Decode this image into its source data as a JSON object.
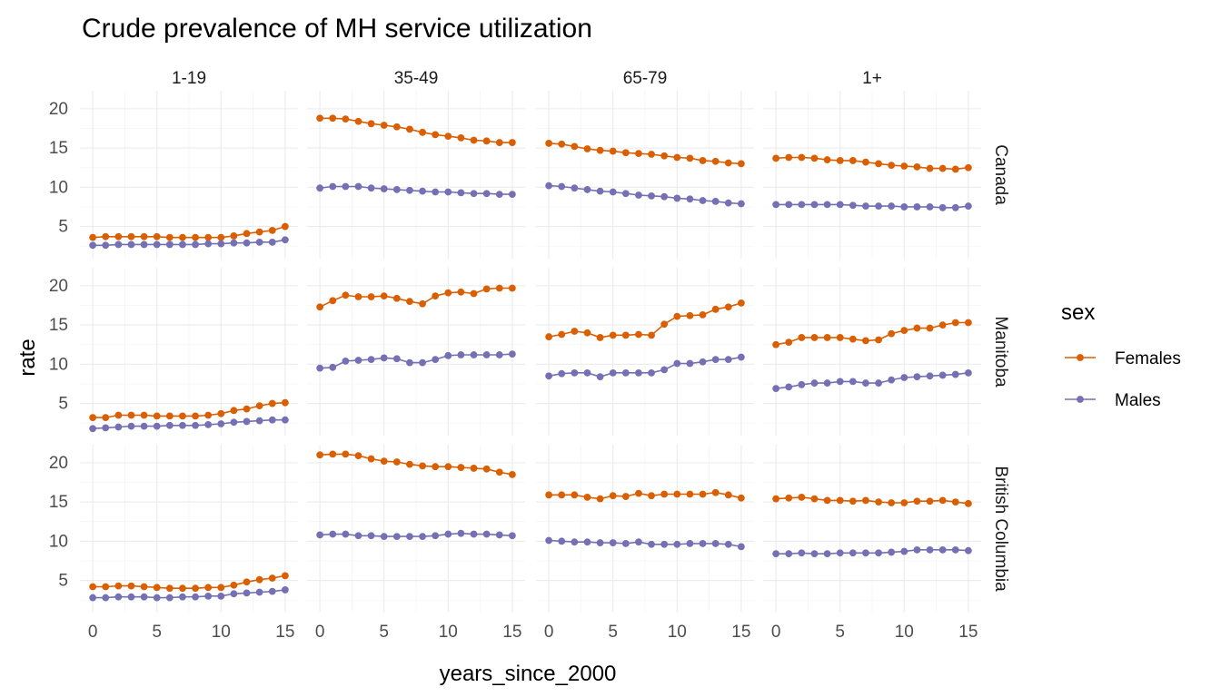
{
  "chart_data": {
    "type": "line",
    "title": "Crude prevalence of MH service utilization",
    "xlabel": "years_since_2000",
    "ylabel": "rate",
    "x": [
      0,
      1,
      2,
      3,
      4,
      5,
      6,
      7,
      8,
      9,
      10,
      11,
      12,
      13,
      14,
      15
    ],
    "xticks": [
      0,
      5,
      10,
      15
    ],
    "yticks": [
      5,
      10,
      15,
      20
    ],
    "xlim": [
      -1,
      16
    ],
    "ylim": [
      0.9,
      22.3
    ],
    "col_facets": [
      "1-19",
      "35-49",
      "65-79",
      "1+"
    ],
    "row_facets": [
      "Canada",
      "Manitoba",
      "British Columbia"
    ],
    "legend": {
      "title": "sex",
      "position": "right",
      "entries": [
        {
          "name": "Females",
          "color": "#D95F02"
        },
        {
          "name": "Males",
          "color": "#7570B3"
        }
      ]
    },
    "panels": [
      {
        "row": "Canada",
        "col": "1-19",
        "series": [
          {
            "name": "Females",
            "values": [
              3.6,
              3.7,
              3.7,
              3.7,
              3.7,
              3.7,
              3.6,
              3.6,
              3.6,
              3.6,
              3.6,
              3.8,
              4.1,
              4.3,
              4.5,
              5.0
            ]
          },
          {
            "name": "Males",
            "values": [
              2.6,
              2.6,
              2.7,
              2.7,
              2.7,
              2.7,
              2.7,
              2.7,
              2.7,
              2.8,
              2.8,
              2.9,
              2.9,
              3.0,
              3.0,
              3.3
            ]
          }
        ]
      },
      {
        "row": "Canada",
        "col": "35-49",
        "series": [
          {
            "name": "Females",
            "values": [
              18.8,
              18.8,
              18.7,
              18.4,
              18.1,
              17.9,
              17.7,
              17.4,
              17.0,
              16.7,
              16.5,
              16.3,
              16.0,
              15.9,
              15.7,
              15.7
            ]
          },
          {
            "name": "Males",
            "values": [
              9.9,
              10.1,
              10.1,
              10.1,
              9.9,
              9.8,
              9.7,
              9.6,
              9.5,
              9.4,
              9.4,
              9.3,
              9.2,
              9.2,
              9.1,
              9.1
            ]
          }
        ]
      },
      {
        "row": "Canada",
        "col": "65-79",
        "series": [
          {
            "name": "Females",
            "values": [
              15.6,
              15.5,
              15.2,
              14.9,
              14.7,
              14.6,
              14.4,
              14.3,
              14.2,
              14.0,
              13.8,
              13.7,
              13.4,
              13.3,
              13.1,
              13.0
            ]
          },
          {
            "name": "Males",
            "values": [
              10.2,
              10.1,
              9.9,
              9.7,
              9.5,
              9.4,
              9.2,
              9.0,
              8.9,
              8.8,
              8.6,
              8.5,
              8.3,
              8.2,
              8.0,
              7.9
            ]
          }
        ]
      },
      {
        "row": "Canada",
        "col": "1+",
        "series": [
          {
            "name": "Females",
            "values": [
              13.7,
              13.8,
              13.8,
              13.7,
              13.5,
              13.4,
              13.4,
              13.2,
              13.0,
              12.8,
              12.7,
              12.6,
              12.4,
              12.4,
              12.3,
              12.5
            ]
          },
          {
            "name": "Males",
            "values": [
              7.8,
              7.8,
              7.8,
              7.8,
              7.8,
              7.8,
              7.7,
              7.6,
              7.6,
              7.6,
              7.5,
              7.5,
              7.5,
              7.4,
              7.4,
              7.6
            ]
          }
        ]
      },
      {
        "row": "Manitoba",
        "col": "1-19",
        "series": [
          {
            "name": "Females",
            "values": [
              3.2,
              3.2,
              3.5,
              3.5,
              3.5,
              3.4,
              3.4,
              3.4,
              3.4,
              3.5,
              3.7,
              4.1,
              4.3,
              4.7,
              5.0,
              5.1
            ]
          },
          {
            "name": "Males",
            "values": [
              1.8,
              1.9,
              2.0,
              2.1,
              2.1,
              2.1,
              2.2,
              2.2,
              2.2,
              2.3,
              2.4,
              2.6,
              2.7,
              2.8,
              2.9,
              2.9
            ]
          }
        ]
      },
      {
        "row": "Manitoba",
        "col": "35-49",
        "series": [
          {
            "name": "Females",
            "values": [
              17.3,
              18.1,
              18.8,
              18.6,
              18.6,
              18.7,
              18.4,
              18.0,
              17.7,
              18.7,
              19.1,
              19.2,
              19.0,
              19.6,
              19.7,
              19.7
            ]
          },
          {
            "name": "Males",
            "values": [
              9.5,
              9.6,
              10.4,
              10.5,
              10.6,
              10.8,
              10.7,
              10.2,
              10.2,
              10.6,
              11.1,
              11.2,
              11.2,
              11.2,
              11.2,
              11.3
            ]
          }
        ]
      },
      {
        "row": "Manitoba",
        "col": "65-79",
        "series": [
          {
            "name": "Females",
            "values": [
              13.5,
              13.8,
              14.2,
              14.0,
              13.4,
              13.7,
              13.7,
              13.8,
              13.7,
              15.1,
              16.1,
              16.2,
              16.3,
              17.0,
              17.3,
              17.8
            ]
          },
          {
            "name": "Males",
            "values": [
              8.5,
              8.8,
              8.9,
              8.9,
              8.4,
              8.9,
              8.9,
              8.9,
              8.9,
              9.3,
              10.1,
              10.1,
              10.3,
              10.6,
              10.6,
              10.9
            ]
          }
        ]
      },
      {
        "row": "Manitoba",
        "col": "1+",
        "series": [
          {
            "name": "Females",
            "values": [
              12.5,
              12.8,
              13.4,
              13.4,
              13.4,
              13.4,
              13.2,
              13.0,
              13.1,
              13.9,
              14.3,
              14.6,
              14.6,
              15.0,
              15.3,
              15.3
            ]
          },
          {
            "name": "Males",
            "values": [
              6.9,
              7.1,
              7.4,
              7.6,
              7.6,
              7.8,
              7.8,
              7.6,
              7.6,
              8.0,
              8.3,
              8.4,
              8.5,
              8.6,
              8.7,
              8.9
            ]
          }
        ]
      },
      {
        "row": "British Columbia",
        "col": "1-19",
        "series": [
          {
            "name": "Females",
            "values": [
              4.2,
              4.2,
              4.3,
              4.3,
              4.2,
              4.1,
              4.0,
              4.0,
              4.0,
              4.1,
              4.1,
              4.4,
              4.8,
              5.1,
              5.3,
              5.6
            ]
          },
          {
            "name": "Males",
            "values": [
              2.8,
              2.8,
              2.9,
              2.9,
              2.9,
              2.8,
              2.8,
              2.9,
              2.9,
              3.0,
              3.0,
              3.3,
              3.4,
              3.5,
              3.6,
              3.8
            ]
          }
        ]
      },
      {
        "row": "British Columbia",
        "col": "35-49",
        "series": [
          {
            "name": "Females",
            "values": [
              21.0,
              21.1,
              21.1,
              20.9,
              20.5,
              20.2,
              20.1,
              19.8,
              19.6,
              19.5,
              19.5,
              19.4,
              19.3,
              19.2,
              18.8,
              18.5
            ]
          },
          {
            "name": "Males",
            "values": [
              10.8,
              10.9,
              10.9,
              10.7,
              10.7,
              10.6,
              10.6,
              10.6,
              10.6,
              10.7,
              10.9,
              11.0,
              10.9,
              10.9,
              10.8,
              10.7
            ]
          }
        ]
      },
      {
        "row": "British Columbia",
        "col": "65-79",
        "series": [
          {
            "name": "Females",
            "values": [
              15.9,
              15.9,
              15.9,
              15.6,
              15.4,
              15.8,
              15.7,
              16.1,
              15.8,
              16.0,
              16.0,
              16.0,
              16.0,
              16.2,
              15.9,
              15.5
            ]
          },
          {
            "name": "Males",
            "values": [
              10.1,
              10.0,
              9.9,
              9.9,
              9.8,
              9.8,
              9.7,
              9.9,
              9.6,
              9.6,
              9.6,
              9.7,
              9.7,
              9.7,
              9.6,
              9.3
            ]
          }
        ]
      },
      {
        "row": "British Columbia",
        "col": "1+",
        "series": [
          {
            "name": "Females",
            "values": [
              15.4,
              15.5,
              15.6,
              15.4,
              15.2,
              15.2,
              15.1,
              15.2,
              15.0,
              14.9,
              14.9,
              15.1,
              15.1,
              15.2,
              15.0,
              14.8
            ]
          },
          {
            "name": "Males",
            "values": [
              8.4,
              8.4,
              8.5,
              8.4,
              8.4,
              8.5,
              8.5,
              8.5,
              8.5,
              8.6,
              8.7,
              8.9,
              8.9,
              8.9,
              8.9,
              8.8
            ]
          }
        ]
      }
    ]
  }
}
